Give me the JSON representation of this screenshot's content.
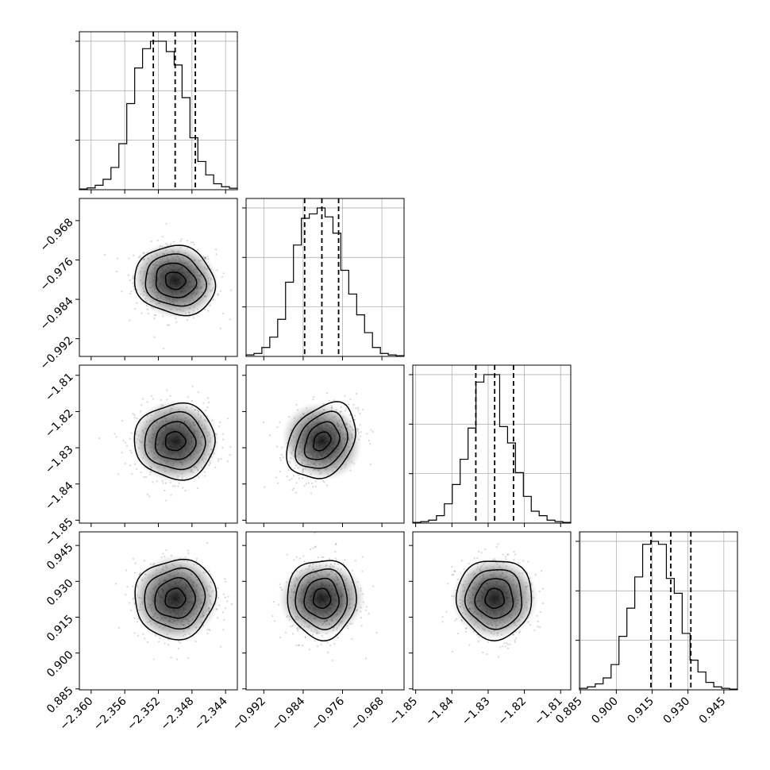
{
  "chart_data": {
    "type": "corner",
    "parameters": [
      {
        "range": [
          -2.3614,
          -2.3426
        ],
        "ticks": [
          -2.36,
          -2.356,
          -2.352,
          -2.348,
          -2.344
        ],
        "tick_labels": [
          "−2.360",
          "−2.356",
          "−2.352",
          "−2.348",
          "−2.344"
        ],
        "mean": -2.35,
        "sigma": 0.0024,
        "quantiles": [
          -2.3526,
          -2.35,
          -2.3476
        ]
      },
      {
        "range": [
          -0.9956,
          -0.9635
        ],
        "ticks": [
          -0.992,
          -0.984,
          -0.976,
          -0.968
        ],
        "tick_labels": [
          "−0.992",
          "−0.984",
          "−0.976",
          "−0.968"
        ],
        "mean": -0.9802,
        "sigma": 0.0035,
        "quantiles": [
          -0.9837,
          -0.9802,
          -0.9768
        ]
      },
      {
        "range": [
          -1.8508,
          -1.8072
        ],
        "ticks": [
          -1.85,
          -1.84,
          -1.83,
          -1.82,
          -1.81
        ],
        "tick_labels": [
          "−1.85",
          "−1.84",
          "−1.83",
          "−1.82",
          "−1.81"
        ],
        "mean": -1.8282,
        "sigma": 0.0052,
        "quantiles": [
          -1.8334,
          -1.8282,
          -1.823
        ]
      },
      {
        "range": [
          0.8846,
          0.9507
        ],
        "ticks": [
          0.885,
          0.9,
          0.915,
          0.93,
          0.945
        ],
        "tick_labels": [
          "0.885",
          "0.900",
          "0.915",
          "0.930",
          "0.945"
        ],
        "mean": 0.9228,
        "sigma": 0.0083,
        "quantiles": [
          0.9145,
          0.9228,
          0.9312
        ]
      }
    ],
    "histograms": [
      [
        0.005,
        0.012,
        0.03,
        0.07,
        0.15,
        0.31,
        0.58,
        0.82,
        0.95,
        1.0,
        1.0,
        0.93,
        0.84,
        0.62,
        0.35,
        0.19,
        0.1,
        0.04,
        0.02,
        0.01
      ],
      [
        0.01,
        0.02,
        0.06,
        0.13,
        0.25,
        0.5,
        0.75,
        0.93,
        0.96,
        1.0,
        0.94,
        0.83,
        0.58,
        0.42,
        0.28,
        0.16,
        0.06,
        0.02,
        0.01,
        0.005
      ],
      [
        0.005,
        0.01,
        0.02,
        0.05,
        0.13,
        0.26,
        0.43,
        0.64,
        0.95,
        1.0,
        1.0,
        0.65,
        0.54,
        0.34,
        0.18,
        0.08,
        0.05,
        0.02,
        0.01,
        0.005
      ],
      [
        0.01,
        0.02,
        0.04,
        0.08,
        0.17,
        0.36,
        0.55,
        0.76,
        0.98,
        1.0,
        0.98,
        0.75,
        0.65,
        0.38,
        0.2,
        0.12,
        0.05,
        0.02,
        0.01,
        0.005
      ]
    ],
    "correlations": {
      "1-0": -0.1,
      "2-0": 0.0,
      "2-1": 0.3,
      "3-0": 0.05,
      "3-1": 0.0,
      "3-2": 0.0
    },
    "contour_sigma_levels": [
      0.5,
      1.0,
      1.5,
      2.0
    ],
    "grid": true
  }
}
